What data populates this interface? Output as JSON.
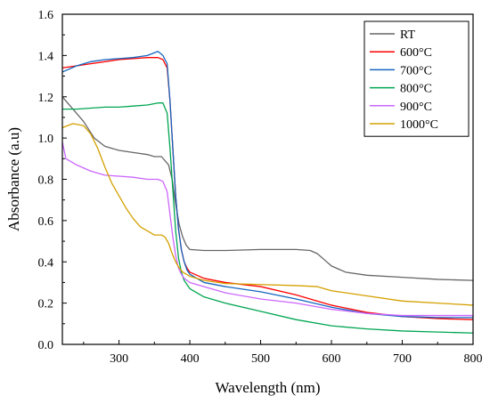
{
  "chart_data": {
    "type": "line",
    "xlabel": "Wavelength (nm)",
    "ylabel": "Absorbance (a.u)",
    "xlim": [
      220,
      800
    ],
    "ylim": [
      0.0,
      1.6
    ],
    "xticks": [
      300,
      400,
      500,
      600,
      700,
      800
    ],
    "xtick_labels": [
      "300",
      "400",
      "500",
      "600",
      "700",
      "800"
    ],
    "yticks": [
      0.0,
      0.2,
      0.4,
      0.6,
      0.8,
      1.0,
      1.2,
      1.4,
      1.6
    ],
    "ytick_labels": [
      "0.0",
      "0.2",
      "0.4",
      "0.6",
      "0.8",
      "1.0",
      "1.2",
      "1.4",
      "1.6"
    ],
    "grid": false,
    "legend_position": "top-right",
    "series": [
      {
        "name": "RT",
        "color": "#666666",
        "points": [
          [
            220,
            1.2
          ],
          [
            225,
            1.18
          ],
          [
            235,
            1.14
          ],
          [
            250,
            1.08
          ],
          [
            265,
            1.0
          ],
          [
            280,
            0.96
          ],
          [
            300,
            0.94
          ],
          [
            320,
            0.93
          ],
          [
            340,
            0.92
          ],
          [
            350,
            0.91
          ],
          [
            360,
            0.91
          ],
          [
            370,
            0.87
          ],
          [
            375,
            0.8
          ],
          [
            380,
            0.68
          ],
          [
            385,
            0.58
          ],
          [
            390,
            0.52
          ],
          [
            395,
            0.48
          ],
          [
            400,
            0.46
          ],
          [
            420,
            0.455
          ],
          [
            450,
            0.455
          ],
          [
            500,
            0.46
          ],
          [
            550,
            0.46
          ],
          [
            570,
            0.455
          ],
          [
            580,
            0.44
          ],
          [
            590,
            0.41
          ],
          [
            600,
            0.38
          ],
          [
            620,
            0.35
          ],
          [
            650,
            0.335
          ],
          [
            700,
            0.325
          ],
          [
            750,
            0.315
          ],
          [
            800,
            0.31
          ]
        ]
      },
      {
        "name": "600°C",
        "color": "#ff0000",
        "points": [
          [
            220,
            1.34
          ],
          [
            240,
            1.35
          ],
          [
            260,
            1.36
          ],
          [
            280,
            1.37
          ],
          [
            300,
            1.38
          ],
          [
            320,
            1.385
          ],
          [
            340,
            1.39
          ],
          [
            355,
            1.39
          ],
          [
            362,
            1.38
          ],
          [
            368,
            1.34
          ],
          [
            372,
            1.18
          ],
          [
            376,
            0.95
          ],
          [
            380,
            0.72
          ],
          [
            384,
            0.56
          ],
          [
            388,
            0.46
          ],
          [
            392,
            0.4
          ],
          [
            396,
            0.37
          ],
          [
            400,
            0.35
          ],
          [
            420,
            0.32
          ],
          [
            450,
            0.3
          ],
          [
            500,
            0.28
          ],
          [
            550,
            0.24
          ],
          [
            600,
            0.19
          ],
          [
            650,
            0.155
          ],
          [
            700,
            0.135
          ],
          [
            750,
            0.125
          ],
          [
            800,
            0.12
          ]
        ]
      },
      {
        "name": "700°C",
        "color": "#1565c0",
        "points": [
          [
            220,
            1.32
          ],
          [
            240,
            1.35
          ],
          [
            260,
            1.37
          ],
          [
            280,
            1.38
          ],
          [
            300,
            1.385
          ],
          [
            320,
            1.39
          ],
          [
            340,
            1.4
          ],
          [
            355,
            1.42
          ],
          [
            362,
            1.4
          ],
          [
            368,
            1.36
          ],
          [
            372,
            1.18
          ],
          [
            376,
            0.95
          ],
          [
            380,
            0.72
          ],
          [
            384,
            0.56
          ],
          [
            388,
            0.46
          ],
          [
            392,
            0.4
          ],
          [
            396,
            0.36
          ],
          [
            400,
            0.34
          ],
          [
            420,
            0.3
          ],
          [
            450,
            0.28
          ],
          [
            500,
            0.255
          ],
          [
            550,
            0.22
          ],
          [
            600,
            0.18
          ],
          [
            650,
            0.15
          ],
          [
            700,
            0.135
          ],
          [
            750,
            0.13
          ],
          [
            800,
            0.13
          ]
        ]
      },
      {
        "name": "800°C",
        "color": "#00a651",
        "points": [
          [
            220,
            1.14
          ],
          [
            240,
            1.14
          ],
          [
            260,
            1.145
          ],
          [
            280,
            1.15
          ],
          [
            300,
            1.15
          ],
          [
            320,
            1.155
          ],
          [
            340,
            1.16
          ],
          [
            355,
            1.17
          ],
          [
            362,
            1.17
          ],
          [
            368,
            1.12
          ],
          [
            372,
            0.95
          ],
          [
            376,
            0.75
          ],
          [
            380,
            0.55
          ],
          [
            384,
            0.42
          ],
          [
            388,
            0.35
          ],
          [
            392,
            0.31
          ],
          [
            396,
            0.29
          ],
          [
            400,
            0.27
          ],
          [
            420,
            0.23
          ],
          [
            450,
            0.2
          ],
          [
            500,
            0.16
          ],
          [
            550,
            0.12
          ],
          [
            600,
            0.09
          ],
          [
            650,
            0.075
          ],
          [
            700,
            0.065
          ],
          [
            750,
            0.06
          ],
          [
            800,
            0.055
          ]
        ]
      },
      {
        "name": "900°C",
        "color": "#cc66ff",
        "points": [
          [
            220,
            0.98
          ],
          [
            225,
            0.9
          ],
          [
            240,
            0.87
          ],
          [
            260,
            0.84
          ],
          [
            280,
            0.82
          ],
          [
            300,
            0.815
          ],
          [
            320,
            0.81
          ],
          [
            340,
            0.8
          ],
          [
            355,
            0.8
          ],
          [
            362,
            0.79
          ],
          [
            368,
            0.74
          ],
          [
            372,
            0.63
          ],
          [
            376,
            0.52
          ],
          [
            380,
            0.43
          ],
          [
            384,
            0.37
          ],
          [
            388,
            0.34
          ],
          [
            392,
            0.32
          ],
          [
            396,
            0.31
          ],
          [
            400,
            0.3
          ],
          [
            420,
            0.28
          ],
          [
            450,
            0.25
          ],
          [
            500,
            0.22
          ],
          [
            550,
            0.2
          ],
          [
            600,
            0.17
          ],
          [
            650,
            0.15
          ],
          [
            700,
            0.14
          ],
          [
            750,
            0.14
          ],
          [
            800,
            0.14
          ]
        ]
      },
      {
        "name": "1000°C",
        "color": "#d4a000",
        "points": [
          [
            220,
            1.05
          ],
          [
            235,
            1.07
          ],
          [
            250,
            1.06
          ],
          [
            260,
            1.02
          ],
          [
            270,
            0.95
          ],
          [
            280,
            0.86
          ],
          [
            290,
            0.78
          ],
          [
            300,
            0.72
          ],
          [
            310,
            0.66
          ],
          [
            320,
            0.61
          ],
          [
            330,
            0.57
          ],
          [
            340,
            0.55
          ],
          [
            350,
            0.53
          ],
          [
            360,
            0.53
          ],
          [
            365,
            0.52
          ],
          [
            370,
            0.49
          ],
          [
            375,
            0.44
          ],
          [
            380,
            0.4
          ],
          [
            385,
            0.37
          ],
          [
            390,
            0.35
          ],
          [
            395,
            0.34
          ],
          [
            400,
            0.33
          ],
          [
            420,
            0.31
          ],
          [
            450,
            0.295
          ],
          [
            500,
            0.29
          ],
          [
            550,
            0.285
          ],
          [
            580,
            0.28
          ],
          [
            600,
            0.26
          ],
          [
            650,
            0.235
          ],
          [
            700,
            0.21
          ],
          [
            750,
            0.2
          ],
          [
            800,
            0.19
          ]
        ]
      }
    ]
  }
}
